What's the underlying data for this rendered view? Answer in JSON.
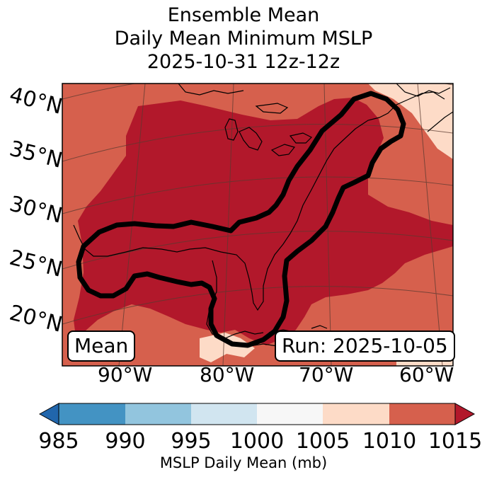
{
  "title": {
    "line1": "Ensemble Mean",
    "line2": "Daily Mean Minimum MSLP",
    "line3": "2025-10-31 12z-12z"
  },
  "latitude_labels": [
    "40°N",
    "35°N",
    "30°N",
    "25°N",
    "20°N"
  ],
  "longitude_labels": [
    "90°W",
    "80°W",
    "70°W",
    "60°W"
  ],
  "badges": {
    "left": "Mean",
    "right": "Run: 2025-10-05"
  },
  "colorbar": {
    "ticks": [
      "985",
      "990",
      "995",
      "1000",
      "1005",
      "1010",
      "1015"
    ],
    "label": "MSLP Daily Mean (mb)",
    "colors": {
      "under": "#2166ac",
      "c985_990": "#4393c3",
      "c990_995": "#92c5de",
      "c995_1000": "#d1e5f0",
      "c1000_1005": "#f7f7f7",
      "c1005_1010": "#fddbc7",
      "c1010_1015": "#d6604d",
      "over": "#b2182b"
    }
  }
}
